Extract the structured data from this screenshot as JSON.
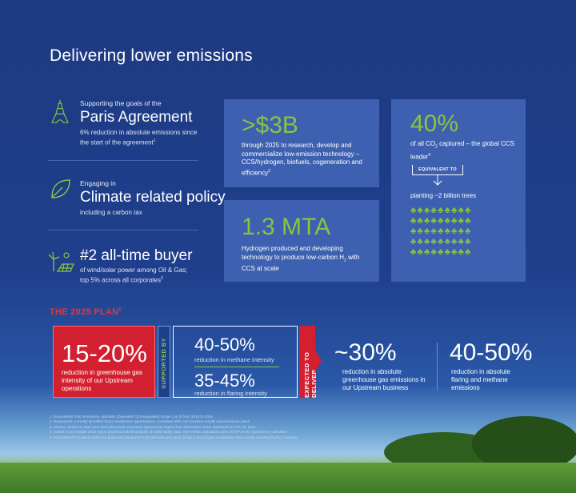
{
  "title": "Delivering lower emissions",
  "left_items": [
    {
      "kicker": "Supporting the goals of the",
      "headline": "Paris Agreement",
      "detail": "6% reduction in absolute emissions since the start of the agreement",
      "sup": "1",
      "icon": "eiffel-tower-icon"
    },
    {
      "kicker": "Engaging in",
      "headline": "Climate related policy",
      "detail": "including a carbon tax",
      "icon": "leaf-icon"
    },
    {
      "kicker": "",
      "headline": "#2 all-time buyer",
      "detail": "of wind/solar power among Oil & Gas; top 5% across all corporates",
      "sup": "3",
      "icon": "wind-solar-icon"
    }
  ],
  "tiles": {
    "investment": {
      "value": ">$3B",
      "text": "through 2025 to research, develop and commercialize low-emission technology – CCS/hydrogen, biofuels, cogeneration and efficiency",
      "sup": "2"
    },
    "hydrogen": {
      "value": "1.3 MTA",
      "text_a": "Hydrogen produced and developing technology to produce low-carbon H",
      "sub": "2",
      "text_b": " with CCS at scale"
    },
    "ccs": {
      "value": "40%",
      "text_a": "of all CO",
      "sub": "2",
      "text_b": " captured – the global CCS leader",
      "sup": "4",
      "badge": "EQUIVALENT TO",
      "equivalent": "planting ~2 billion trees"
    }
  },
  "plan": {
    "title": "THE 2025 PLAN",
    "title_sup": "5",
    "main_value": "15-20%",
    "main_text": "reduction in greenhouse gas intensity of our Upstream operations",
    "supported_by": "SUPPORTED BY",
    "methane_value": "40-50%",
    "methane_text": "reduction in methane intensity",
    "flaring_value": "35-45%",
    "flaring_text": "reduction in flaring intensity",
    "expected": "EXPECTED TO DELIVER",
    "absolute_value": "~30%",
    "absolute_text": "reduction in absolute greenhouse gas emissions in our Upstream business",
    "flare_methane_value": "40-50%",
    "flare_methane_text": "reduction in absolute flaring and methane emissions"
  },
  "footnotes": [
    "1.   ExxonMobil GHG emissions, absolute (Operated CO2-equivalent Scope 1 & 2) from 2016 to 2019",
    "2.   Represents currently identified future investment opportunities, consistent with cost previous results and emissions plans",
    "3.   All time, based on total wind and solar power purchase agreements signed from December 2019; download on Feb 22, 2021",
    "4.   Global CCS Institute 2020 report and ExxonMobil analysis of 2020 facility data. Tree metric calculated with US EPA GHG equivalency calculator",
    "5.   ExxonMobil's emission reduction plans are compared to 2016 levels and cover Scope 1 and Scope 2 emissions from assets operated by the Company"
  ],
  "colors": {
    "accent_green": "#8ac43f",
    "accent_red": "#d32030",
    "tile_blue": "#3d60b0",
    "background": "#1f3f8c"
  }
}
